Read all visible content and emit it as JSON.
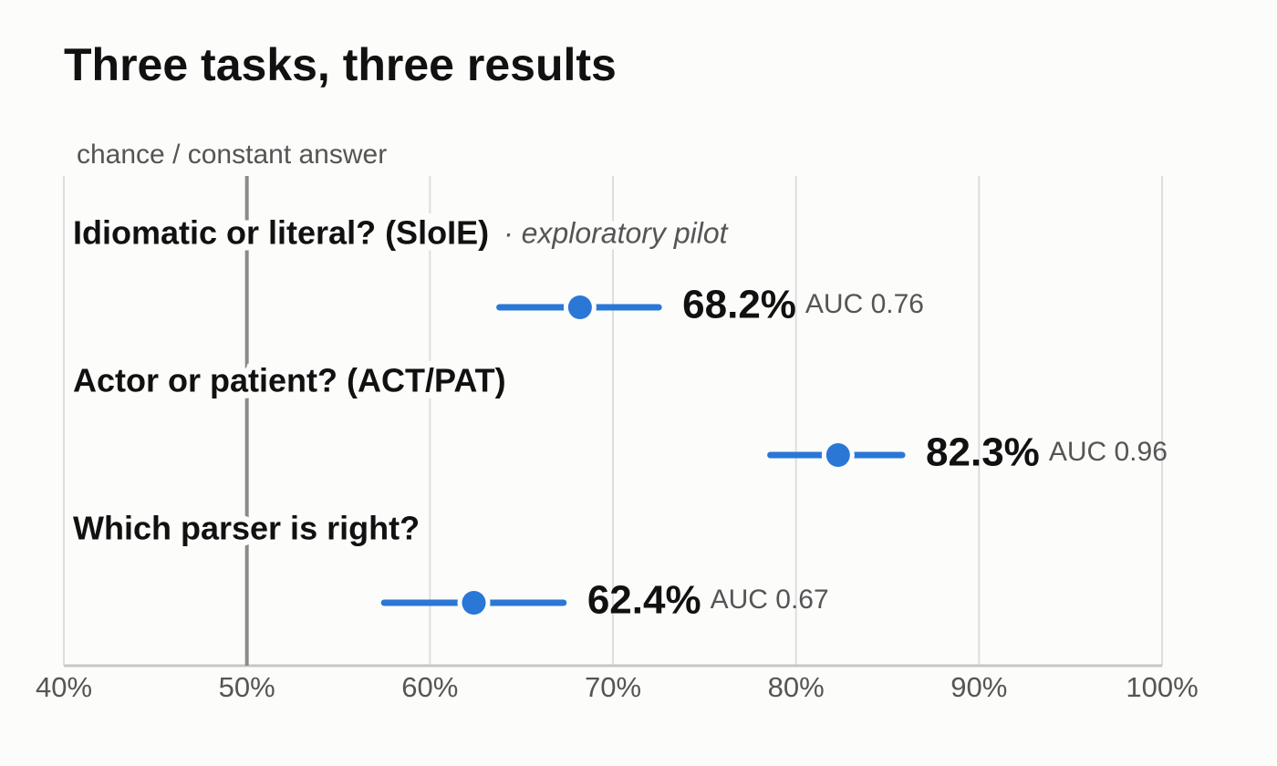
{
  "chart_data": {
    "type": "dot-errorbar",
    "title": "Three tasks, three results",
    "categories": [
      "Idiomatic or literal? (SloIE)",
      "Actor or patient? (ACT/PAT)",
      "Which parser is right?"
    ],
    "category_notes": [
      "· exploratory pilot",
      null,
      null
    ],
    "series": [
      {
        "color": "#2a77d6",
        "values": [
          68.2,
          82.3,
          62.4
        ],
        "value_labels": [
          "68.2%",
          "82.3%",
          "62.4%"
        ],
        "lower": [
          63.8,
          78.6,
          57.5
        ],
        "upper": [
          72.5,
          85.8,
          67.3
        ],
        "auc_labels": [
          "AUC 0.76",
          "AUC 0.96",
          "AUC 0.67"
        ]
      }
    ],
    "reference_line": {
      "value": 50,
      "label": "chance / constant answer"
    },
    "xlim": [
      40,
      100
    ],
    "xticks": [
      {
        "value": 40,
        "label": "40%"
      },
      {
        "value": 50,
        "label": "50%"
      },
      {
        "value": 60,
        "label": "60%"
      },
      {
        "value": 70,
        "label": "70%"
      },
      {
        "value": 80,
        "label": "80%"
      },
      {
        "value": 90,
        "label": "90%"
      },
      {
        "value": 100,
        "label": "100%"
      }
    ],
    "grid": true
  }
}
